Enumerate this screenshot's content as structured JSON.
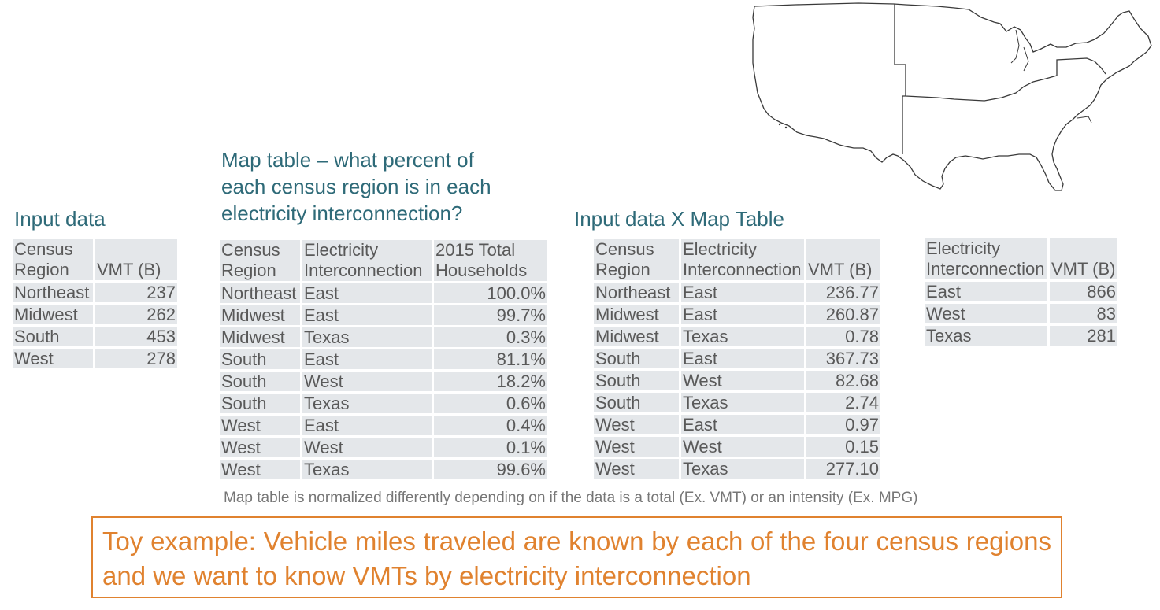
{
  "input_data": {
    "title": "Input data",
    "header": [
      "Census Region",
      "VMT (B)"
    ],
    "rows": [
      [
        "Northeast",
        "237"
      ],
      [
        "Midwest",
        "262"
      ],
      [
        "South",
        "453"
      ],
      [
        "West",
        "278"
      ]
    ]
  },
  "map_table": {
    "title_lines": [
      "Map table – what percent of",
      "each census region is in each",
      "electricity interconnection?"
    ],
    "header": [
      "Census Region",
      "Electricity Interconnection",
      "2015 Total Households"
    ],
    "rows": [
      [
        "Northeast",
        "East",
        "100.0%"
      ],
      [
        "Midwest",
        "East",
        "99.7%"
      ],
      [
        "Midwest",
        "Texas",
        "0.3%"
      ],
      [
        "South",
        "East",
        "81.1%"
      ],
      [
        "South",
        "West",
        "18.2%"
      ],
      [
        "South",
        "Texas",
        "0.6%"
      ],
      [
        "West",
        "East",
        "0.4%"
      ],
      [
        "West",
        "West",
        "0.1%"
      ],
      [
        "West",
        "Texas",
        "99.6%"
      ]
    ]
  },
  "product_table": {
    "title": "Input data X Map Table",
    "header": [
      "Census Region",
      "Electricity Interconnection",
      "VMT (B)"
    ],
    "rows": [
      [
        "Northeast",
        "East",
        "236.77"
      ],
      [
        "Midwest",
        "East",
        "260.87"
      ],
      [
        "Midwest",
        "Texas",
        "0.78"
      ],
      [
        "South",
        "East",
        "367.73"
      ],
      [
        "South",
        "West",
        "82.68"
      ],
      [
        "South",
        "Texas",
        "2.74"
      ],
      [
        "West",
        "East",
        "0.97"
      ],
      [
        "West",
        "West",
        "0.15"
      ],
      [
        "West",
        "Texas",
        "277.10"
      ]
    ]
  },
  "result_table": {
    "header": [
      "Electricity Interconnection",
      "VMT (B)"
    ],
    "rows": [
      [
        "East",
        "866"
      ],
      [
        "West",
        "83"
      ],
      [
        "Texas",
        "281"
      ]
    ]
  },
  "note": "Map table is normalized differently depending on if the data is a total (Ex. VMT) or an intensity (Ex. MPG)",
  "callout": "Toy example: Vehicle miles traveled are known by each of the four census regions and we want to know VMTs by electricity interconnection",
  "colors": {
    "heading": "#2e6a78",
    "callout": "#e0822f",
    "cell": "#e4e7ea"
  },
  "map_icon": "us-interconnection-map"
}
